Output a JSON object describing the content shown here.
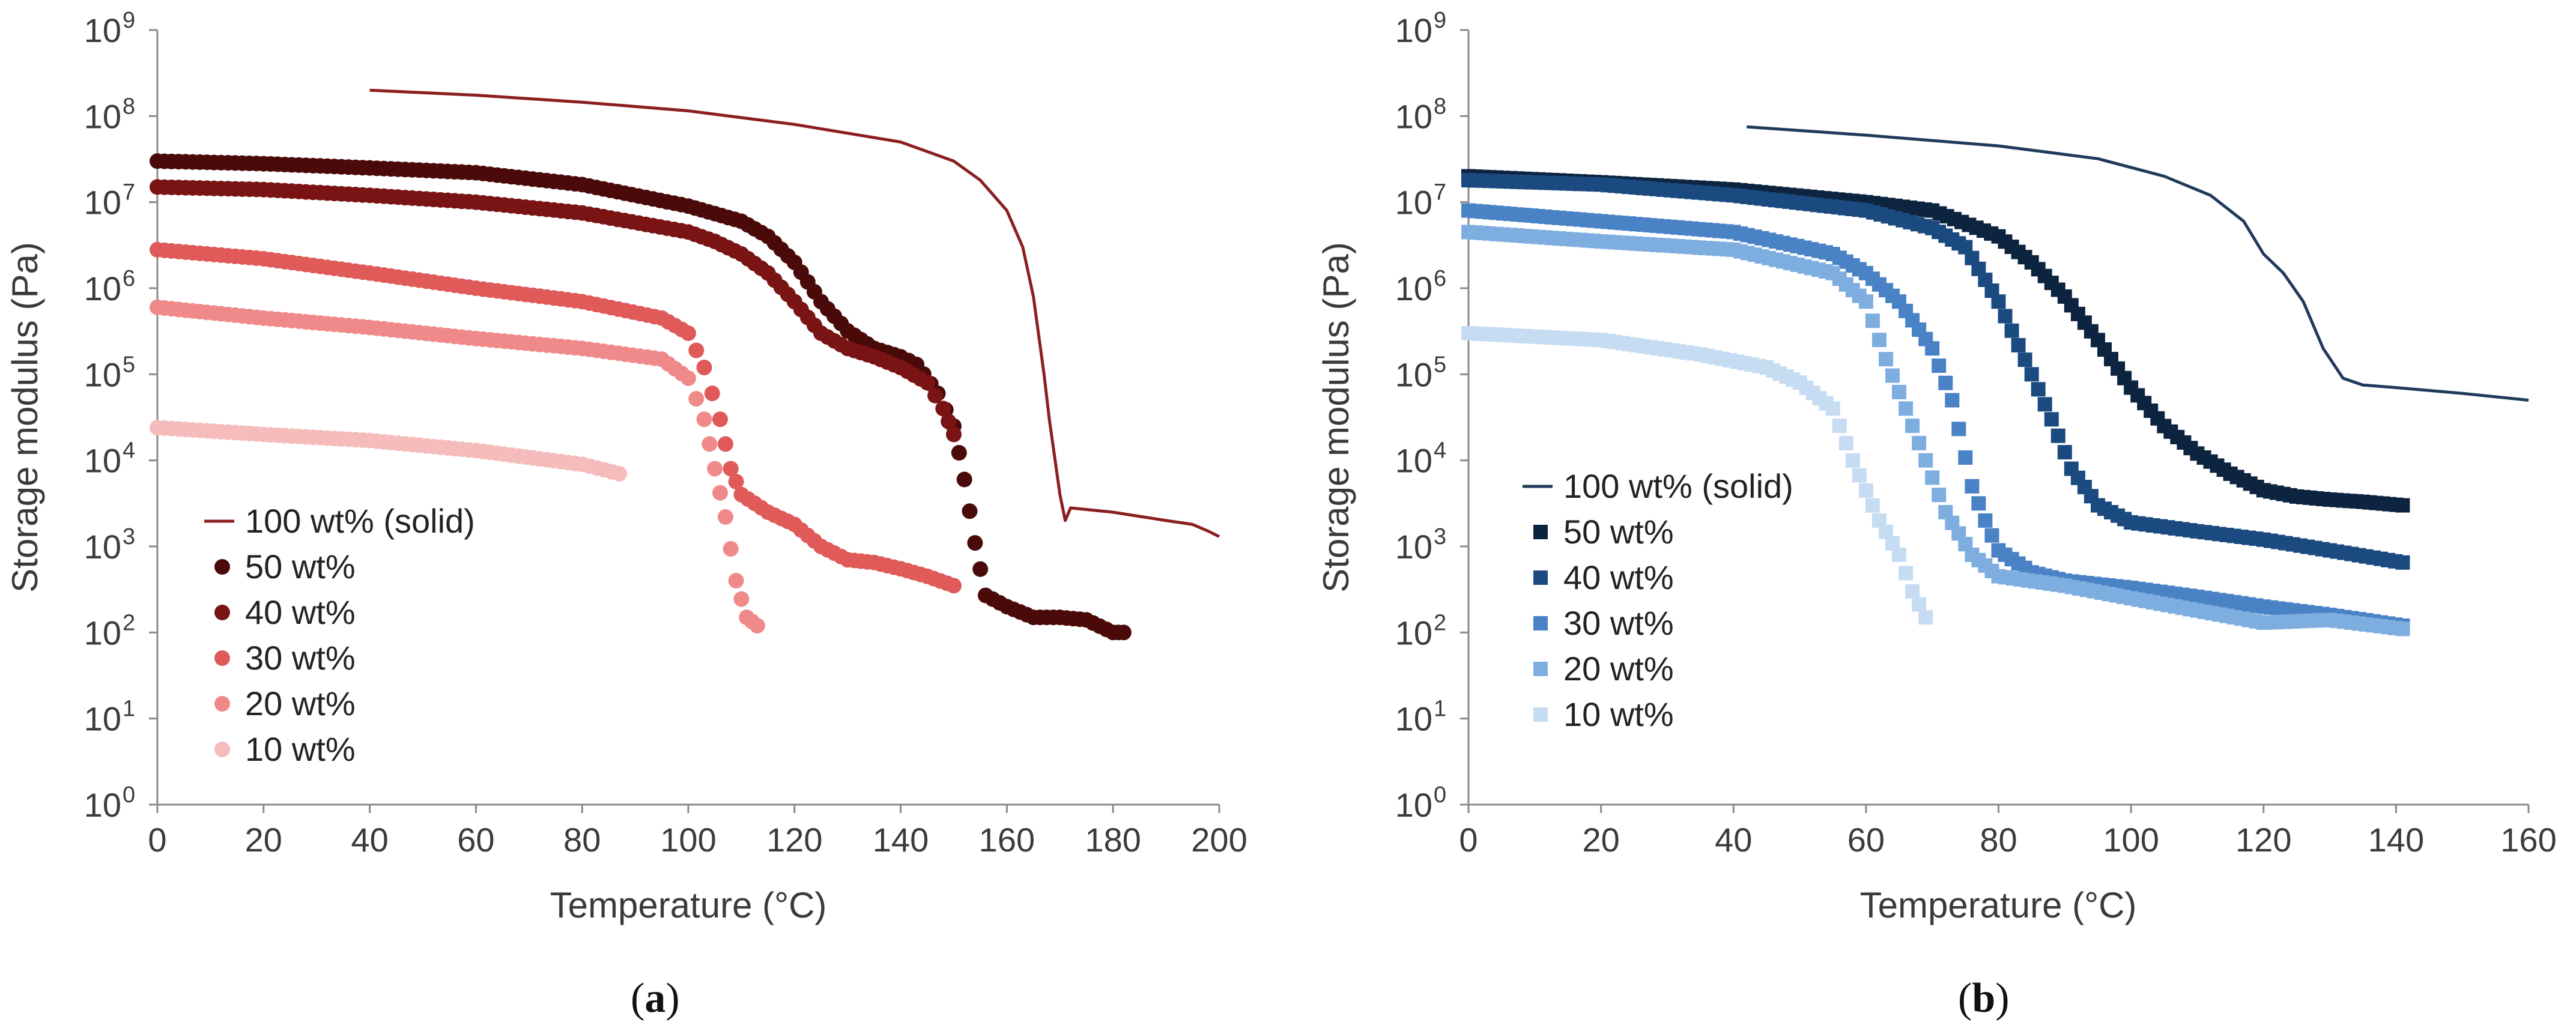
{
  "chart_data": [
    {
      "type": "scatter",
      "panel_label": "a",
      "xlabel": "Temperature (°C)",
      "ylabel": "Storage modulus (Pa)",
      "xlim": [
        0,
        200
      ],
      "ylim": [
        1,
        1000000000
      ],
      "y_scale": "log",
      "x_ticks": [
        0,
        20,
        40,
        60,
        80,
        100,
        120,
        140,
        160,
        180,
        200
      ],
      "y_tick_exponents": [
        0,
        1,
        2,
        3,
        4,
        5,
        6,
        7,
        8,
        9
      ],
      "grid": false,
      "legend_placement": "lower-left",
      "series": [
        {
          "name": "100 wt% (solid)",
          "style": "line",
          "color": "#8b1f1f",
          "points": [
            [
              40,
              200000000
            ],
            [
              60,
              175000000
            ],
            [
              80,
              145000000
            ],
            [
              100,
              115000000
            ],
            [
              120,
              80000000
            ],
            [
              140,
              50000000
            ],
            [
              150,
              30000000
            ],
            [
              155,
              18000000
            ],
            [
              160,
              8000000
            ],
            [
              163,
              3000000
            ],
            [
              165,
              800000
            ],
            [
              167,
              100000
            ],
            [
              168,
              30000
            ],
            [
              170,
              4000
            ],
            [
              171,
              2000
            ],
            [
              172,
              2800
            ],
            [
              180,
              2500
            ],
            [
              190,
              2000
            ],
            [
              195,
              1800
            ],
            [
              198,
              1500
            ],
            [
              200,
              1300
            ]
          ]
        },
        {
          "name": "50 wt%",
          "style": "circle",
          "color": "#4a0a0a",
          "points": [
            [
              0,
              30000000
            ],
            [
              20,
              28000000
            ],
            [
              40,
              25000000
            ],
            [
              60,
              22000000
            ],
            [
              80,
              16000000
            ],
            [
              100,
              9000000
            ],
            [
              110,
              6000000
            ],
            [
              115,
              4000000
            ],
            [
              120,
              2000000
            ],
            [
              125,
              700000
            ],
            [
              130,
              320000
            ],
            [
              135,
              200000
            ],
            [
              140,
              160000
            ],
            [
              143,
              130000
            ],
            [
              147,
              60000
            ],
            [
              150,
              25000
            ],
            [
              152,
              6000
            ],
            [
              154,
              1100
            ],
            [
              156,
              270
            ],
            [
              160,
              200
            ],
            [
              165,
              150
            ],
            [
              170,
              150
            ],
            [
              175,
              140
            ],
            [
              180,
              100
            ],
            [
              182,
              100
            ]
          ]
        },
        {
          "name": "40 wt%",
          "style": "circle",
          "color": "#7a1414",
          "points": [
            [
              0,
              15000000
            ],
            [
              20,
              14000000
            ],
            [
              40,
              12000000
            ],
            [
              60,
              10000000
            ],
            [
              80,
              7500000
            ],
            [
              100,
              4500000
            ],
            [
              105,
              3500000
            ],
            [
              110,
              2500000
            ],
            [
              115,
              1500000
            ],
            [
              120,
              700000
            ],
            [
              125,
              300000
            ],
            [
              130,
              200000
            ],
            [
              135,
              160000
            ],
            [
              140,
              120000
            ],
            [
              145,
              80000
            ],
            [
              148,
              40000
            ],
            [
              150,
              20000
            ]
          ]
        },
        {
          "name": "30 wt%",
          "style": "circle",
          "color": "#e05a5a",
          "points": [
            [
              0,
              2800000
            ],
            [
              20,
              2200000
            ],
            [
              40,
              1500000
            ],
            [
              60,
              1000000
            ],
            [
              80,
              700000
            ],
            [
              95,
              450000
            ],
            [
              100,
              300000
            ],
            [
              103,
              120000
            ],
            [
              106,
              30000
            ],
            [
              108,
              8000
            ],
            [
              110,
              4000
            ],
            [
              115,
              2500
            ],
            [
              120,
              1800
            ],
            [
              125,
              1000
            ],
            [
              130,
              700
            ],
            [
              135,
              650
            ],
            [
              140,
              550
            ],
            [
              145,
              450
            ],
            [
              150,
              350
            ]
          ]
        },
        {
          "name": "20 wt%",
          "style": "circle",
          "color": "#f08a8a",
          "points": [
            [
              0,
              600000
            ],
            [
              20,
              450000
            ],
            [
              40,
              350000
            ],
            [
              60,
              260000
            ],
            [
              80,
              200000
            ],
            [
              95,
              150000
            ],
            [
              100,
              90000
            ],
            [
              103,
              30000
            ],
            [
              105,
              8000
            ],
            [
              107,
              2200
            ],
            [
              109,
              400
            ],
            [
              111,
              150
            ],
            [
              113,
              120
            ]
          ]
        },
        {
          "name": "10 wt%",
          "style": "circle",
          "color": "#f6bcbc",
          "points": [
            [
              0,
              24000
            ],
            [
              20,
              20000
            ],
            [
              40,
              17000
            ],
            [
              60,
              13000
            ],
            [
              80,
              9000
            ],
            [
              87,
              7000
            ]
          ]
        }
      ]
    },
    {
      "type": "scatter",
      "panel_label": "b",
      "xlabel": "Temperature (°C)",
      "ylabel": "Storage modulus (Pa)",
      "xlim": [
        0,
        160
      ],
      "ylim": [
        1,
        1000000000
      ],
      "y_scale": "log",
      "x_ticks": [
        0,
        20,
        40,
        60,
        80,
        100,
        120,
        140,
        160
      ],
      "y_tick_exponents": [
        0,
        1,
        2,
        3,
        4,
        5,
        6,
        7,
        8,
        9
      ],
      "grid": false,
      "legend_placement": "lower-left",
      "series": [
        {
          "name": "100 wt% (solid)",
          "style": "line",
          "color": "#1f3a5a",
          "points": [
            [
              42,
              75000000
            ],
            [
              60,
              60000000
            ],
            [
              80,
              45000000
            ],
            [
              95,
              32000000
            ],
            [
              105,
              20000000
            ],
            [
              112,
              12000000
            ],
            [
              117,
              6000000
            ],
            [
              120,
              2500000
            ],
            [
              123,
              1500000
            ],
            [
              126,
              700000
            ],
            [
              129,
              200000
            ],
            [
              132,
              90000
            ],
            [
              135,
              75000
            ],
            [
              140,
              70000
            ],
            [
              150,
              60000
            ],
            [
              160,
              50000
            ]
          ]
        },
        {
          "name": "50 wt%",
          "style": "square",
          "color": "#0d2440",
          "points": [
            [
              0,
              20000000
            ],
            [
              20,
              17000000
            ],
            [
              40,
              14000000
            ],
            [
              60,
              10000000
            ],
            [
              70,
              8000000
            ],
            [
              80,
              4000000
            ],
            [
              85,
              2000000
            ],
            [
              90,
              800000
            ],
            [
              95,
              250000
            ],
            [
              100,
              70000
            ],
            [
              105,
              25000
            ],
            [
              110,
              12000
            ],
            [
              115,
              7000
            ],
            [
              120,
              4500
            ],
            [
              125,
              3800
            ],
            [
              130,
              3500
            ],
            [
              135,
              3300
            ],
            [
              141,
              3000
            ]
          ]
        },
        {
          "name": "40 wt%",
          "style": "square",
          "color": "#1b4a80",
          "points": [
            [
              0,
              18000000
            ],
            [
              20,
              16000000
            ],
            [
              40,
              12000000
            ],
            [
              60,
              8000000
            ],
            [
              70,
              5000000
            ],
            [
              75,
              3000000
            ],
            [
              80,
              700000
            ],
            [
              85,
              100000
            ],
            [
              88,
              30000
            ],
            [
              91,
              8000
            ],
            [
              95,
              3000
            ],
            [
              100,
              1900
            ],
            [
              110,
              1500
            ],
            [
              120,
              1200
            ],
            [
              130,
              900
            ],
            [
              141,
              650
            ]
          ]
        },
        {
          "name": "30 wt%",
          "style": "square",
          "color": "#4a82c6",
          "points": [
            [
              0,
              8000000
            ],
            [
              20,
              6000000
            ],
            [
              40,
              4500000
            ],
            [
              55,
              2500000
            ],
            [
              60,
              1500000
            ],
            [
              65,
              700000
            ],
            [
              70,
              200000
            ],
            [
              73,
              50000
            ],
            [
              76,
              5000
            ],
            [
              78,
              2000
            ],
            [
              80,
              900
            ],
            [
              85,
              500
            ],
            [
              90,
              400
            ],
            [
              100,
              330
            ],
            [
              110,
              260
            ],
            [
              120,
              200
            ],
            [
              130,
              160
            ],
            [
              141,
              120
            ]
          ]
        },
        {
          "name": "20 wt%",
          "style": "square",
          "color": "#7eaee0",
          "points": [
            [
              0,
              4500000
            ],
            [
              20,
              3500000
            ],
            [
              40,
              2800000
            ],
            [
              55,
              1500000
            ],
            [
              60,
              700000
            ],
            [
              63,
              150000
            ],
            [
              66,
              40000
            ],
            [
              69,
              10000
            ],
            [
              72,
              2500
            ],
            [
              76,
              800
            ],
            [
              80,
              450
            ],
            [
              90,
              350
            ],
            [
              100,
              250
            ],
            [
              110,
              180
            ],
            [
              120,
              130
            ],
            [
              130,
              140
            ],
            [
              141,
              110
            ]
          ]
        },
        {
          "name": "10 wt%",
          "style": "square",
          "color": "#c6dcf2",
          "points": [
            [
              0,
              300000
            ],
            [
              20,
              250000
            ],
            [
              35,
              170000
            ],
            [
              45,
              120000
            ],
            [
              50,
              80000
            ],
            [
              55,
              40000
            ],
            [
              58,
              10000
            ],
            [
              62,
              2000
            ],
            [
              65,
              800
            ],
            [
              67,
              300
            ],
            [
              69,
              150
            ]
          ]
        }
      ]
    }
  ]
}
